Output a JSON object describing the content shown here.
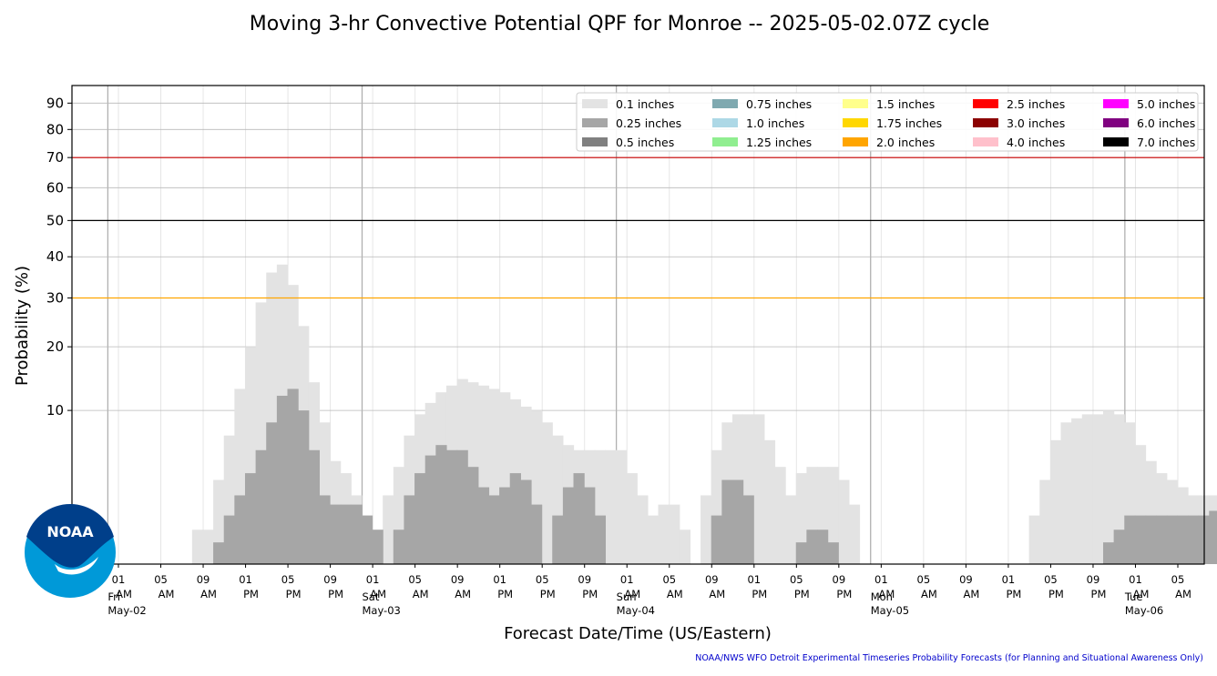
{
  "chart_data": {
    "type": "bar",
    "title": "Moving 3-hr Convective Potential QPF for Monroe -- 2025-05-02.07Z cycle",
    "xlabel": "Forecast Date/Time (US/Eastern)",
    "ylabel": "Probability (%)",
    "ylim": [
      0,
      97
    ],
    "y_scale": "sqrt",
    "yticks": [
      10,
      20,
      30,
      40,
      50,
      60,
      70,
      80,
      90
    ],
    "grid": true,
    "legend_position": "top-right",
    "time_start": "2025-05-02 03:00",
    "bar_interval_hours": 1,
    "x_tick_labels": [
      {
        "hour": "01",
        "ampm": "AM",
        "date": "May-02",
        "day": "Fri"
      },
      {
        "hour": "05",
        "ampm": "AM"
      },
      {
        "hour": "09",
        "ampm": "AM"
      },
      {
        "hour": "01",
        "ampm": "PM"
      },
      {
        "hour": "05",
        "ampm": "PM"
      },
      {
        "hour": "09",
        "ampm": "PM"
      },
      {
        "hour": "01",
        "ampm": "AM",
        "date": "May-03",
        "day": "Sat"
      },
      {
        "hour": "05",
        "ampm": "AM"
      },
      {
        "hour": "09",
        "ampm": "AM"
      },
      {
        "hour": "01",
        "ampm": "PM"
      },
      {
        "hour": "05",
        "ampm": "PM"
      },
      {
        "hour": "09",
        "ampm": "PM"
      },
      {
        "hour": "01",
        "ampm": "AM",
        "date": "May-04",
        "day": "Sun"
      },
      {
        "hour": "05",
        "ampm": "AM"
      },
      {
        "hour": "09",
        "ampm": "AM"
      },
      {
        "hour": "01",
        "ampm": "PM"
      },
      {
        "hour": "05",
        "ampm": "PM"
      },
      {
        "hour": "09",
        "ampm": "PM"
      },
      {
        "hour": "01",
        "ampm": "AM",
        "date": "May-05",
        "day": "Mon"
      },
      {
        "hour": "05",
        "ampm": "AM"
      },
      {
        "hour": "09",
        "ampm": "AM"
      },
      {
        "hour": "01",
        "ampm": "PM"
      },
      {
        "hour": "05",
        "ampm": "PM"
      },
      {
        "hour": "09",
        "ampm": "PM"
      },
      {
        "hour": "01",
        "ampm": "AM",
        "date": "May-06",
        "day": "Tue"
      },
      {
        "hour": "05",
        "ampm": "AM"
      }
    ],
    "reference_lines": [
      {
        "value": 30,
        "color": "#ffa500"
      },
      {
        "value": 50,
        "color": "#000000"
      },
      {
        "value": 70,
        "color": "#cc0000"
      }
    ],
    "series": [
      {
        "name": "0.1 inches",
        "color": "#e3e3e3",
        "values": [
          0,
          0,
          0,
          0,
          0,
          0,
          0,
          0,
          0.5,
          0.5,
          3,
          7,
          13,
          20,
          29,
          36,
          38,
          33,
          24,
          14,
          8.5,
          4.5,
          3.5,
          2,
          1,
          0.5,
          2,
          4,
          7,
          9.5,
          11,
          12.5,
          13.5,
          14.5,
          14,
          13.5,
          13,
          12.5,
          11.5,
          10.5,
          10,
          8.5,
          7,
          6,
          5.5,
          5.5,
          5.5,
          5.5,
          5.5,
          3.5,
          2,
          1,
          1.5,
          1.5,
          0.5,
          0,
          2,
          5.5,
          8.5,
          9.5,
          9.5,
          9.5,
          6.5,
          4,
          2,
          3.5,
          4,
          4,
          4,
          3,
          1.5,
          0,
          0,
          0,
          0,
          0,
          0,
          0,
          0,
          0,
          0,
          0,
          0,
          0,
          0,
          0,
          0,
          1,
          3,
          6.5,
          8.5,
          9,
          9.5,
          9.5,
          10,
          9.5,
          8.5,
          6,
          4.5,
          3.5,
          3,
          2.5,
          2,
          2,
          2,
          0,
          0,
          0,
          0,
          0
        ]
      },
      {
        "name": "0.25 inches",
        "color": "#a6a6a6",
        "values": [
          0,
          0,
          0,
          0,
          0,
          0,
          0,
          0,
          0,
          0,
          0.2,
          1,
          2,
          3.5,
          5.5,
          8.5,
          12,
          13,
          10,
          5.5,
          2,
          1.5,
          1.5,
          1.5,
          1,
          0.5,
          0,
          0.5,
          2,
          3.5,
          5,
          6,
          5.5,
          5.5,
          4,
          2.5,
          2,
          2.5,
          3.5,
          3,
          1.5,
          0,
          1,
          2.5,
          3.5,
          2.5,
          1,
          0,
          0,
          0,
          0,
          0,
          0,
          0,
          0,
          0,
          0,
          1,
          3,
          3,
          2,
          0,
          0,
          0,
          0,
          0.2,
          0.5,
          0.5,
          0.2,
          0,
          0,
          0,
          0,
          0,
          0,
          0,
          0,
          0,
          0,
          0,
          0,
          0,
          0,
          0,
          0,
          0,
          0,
          0,
          0,
          0,
          0,
          0,
          0,
          0,
          0.2,
          0.5,
          1,
          1,
          1,
          1,
          1,
          1,
          1,
          1,
          1.2,
          1.2,
          0,
          0,
          0,
          0,
          0,
          0
        ]
      },
      {
        "name": "0.5 inches",
        "color": "#808080",
        "values": []
      },
      {
        "name": "0.75 inches",
        "color": "#7fa9b0",
        "values": []
      },
      {
        "name": "1.0 inches",
        "color": "#add8e6",
        "values": []
      },
      {
        "name": "1.25 inches",
        "color": "#90ee90",
        "values": []
      },
      {
        "name": "1.5 inches",
        "color": "#ffff8c",
        "values": []
      },
      {
        "name": "1.75 inches",
        "color": "#ffd700",
        "values": []
      },
      {
        "name": "2.0 inches",
        "color": "#ffa500",
        "values": []
      },
      {
        "name": "2.5 inches",
        "color": "#ff0000",
        "values": []
      },
      {
        "name": "3.0 inches",
        "color": "#8b0000",
        "values": []
      },
      {
        "name": "4.0 inches",
        "color": "#ffc0cb",
        "values": []
      },
      {
        "name": "5.0 inches",
        "color": "#ff00ff",
        "values": []
      },
      {
        "name": "6.0 inches",
        "color": "#800080",
        "values": []
      },
      {
        "name": "7.0 inches",
        "color": "#000000",
        "values": []
      }
    ]
  },
  "logo": {
    "text": "NOAA"
  },
  "footer": "NOAA/NWS WFO Detroit Experimental Timeseries Probability Forecasts (for Planning and Situational Awareness Only)"
}
